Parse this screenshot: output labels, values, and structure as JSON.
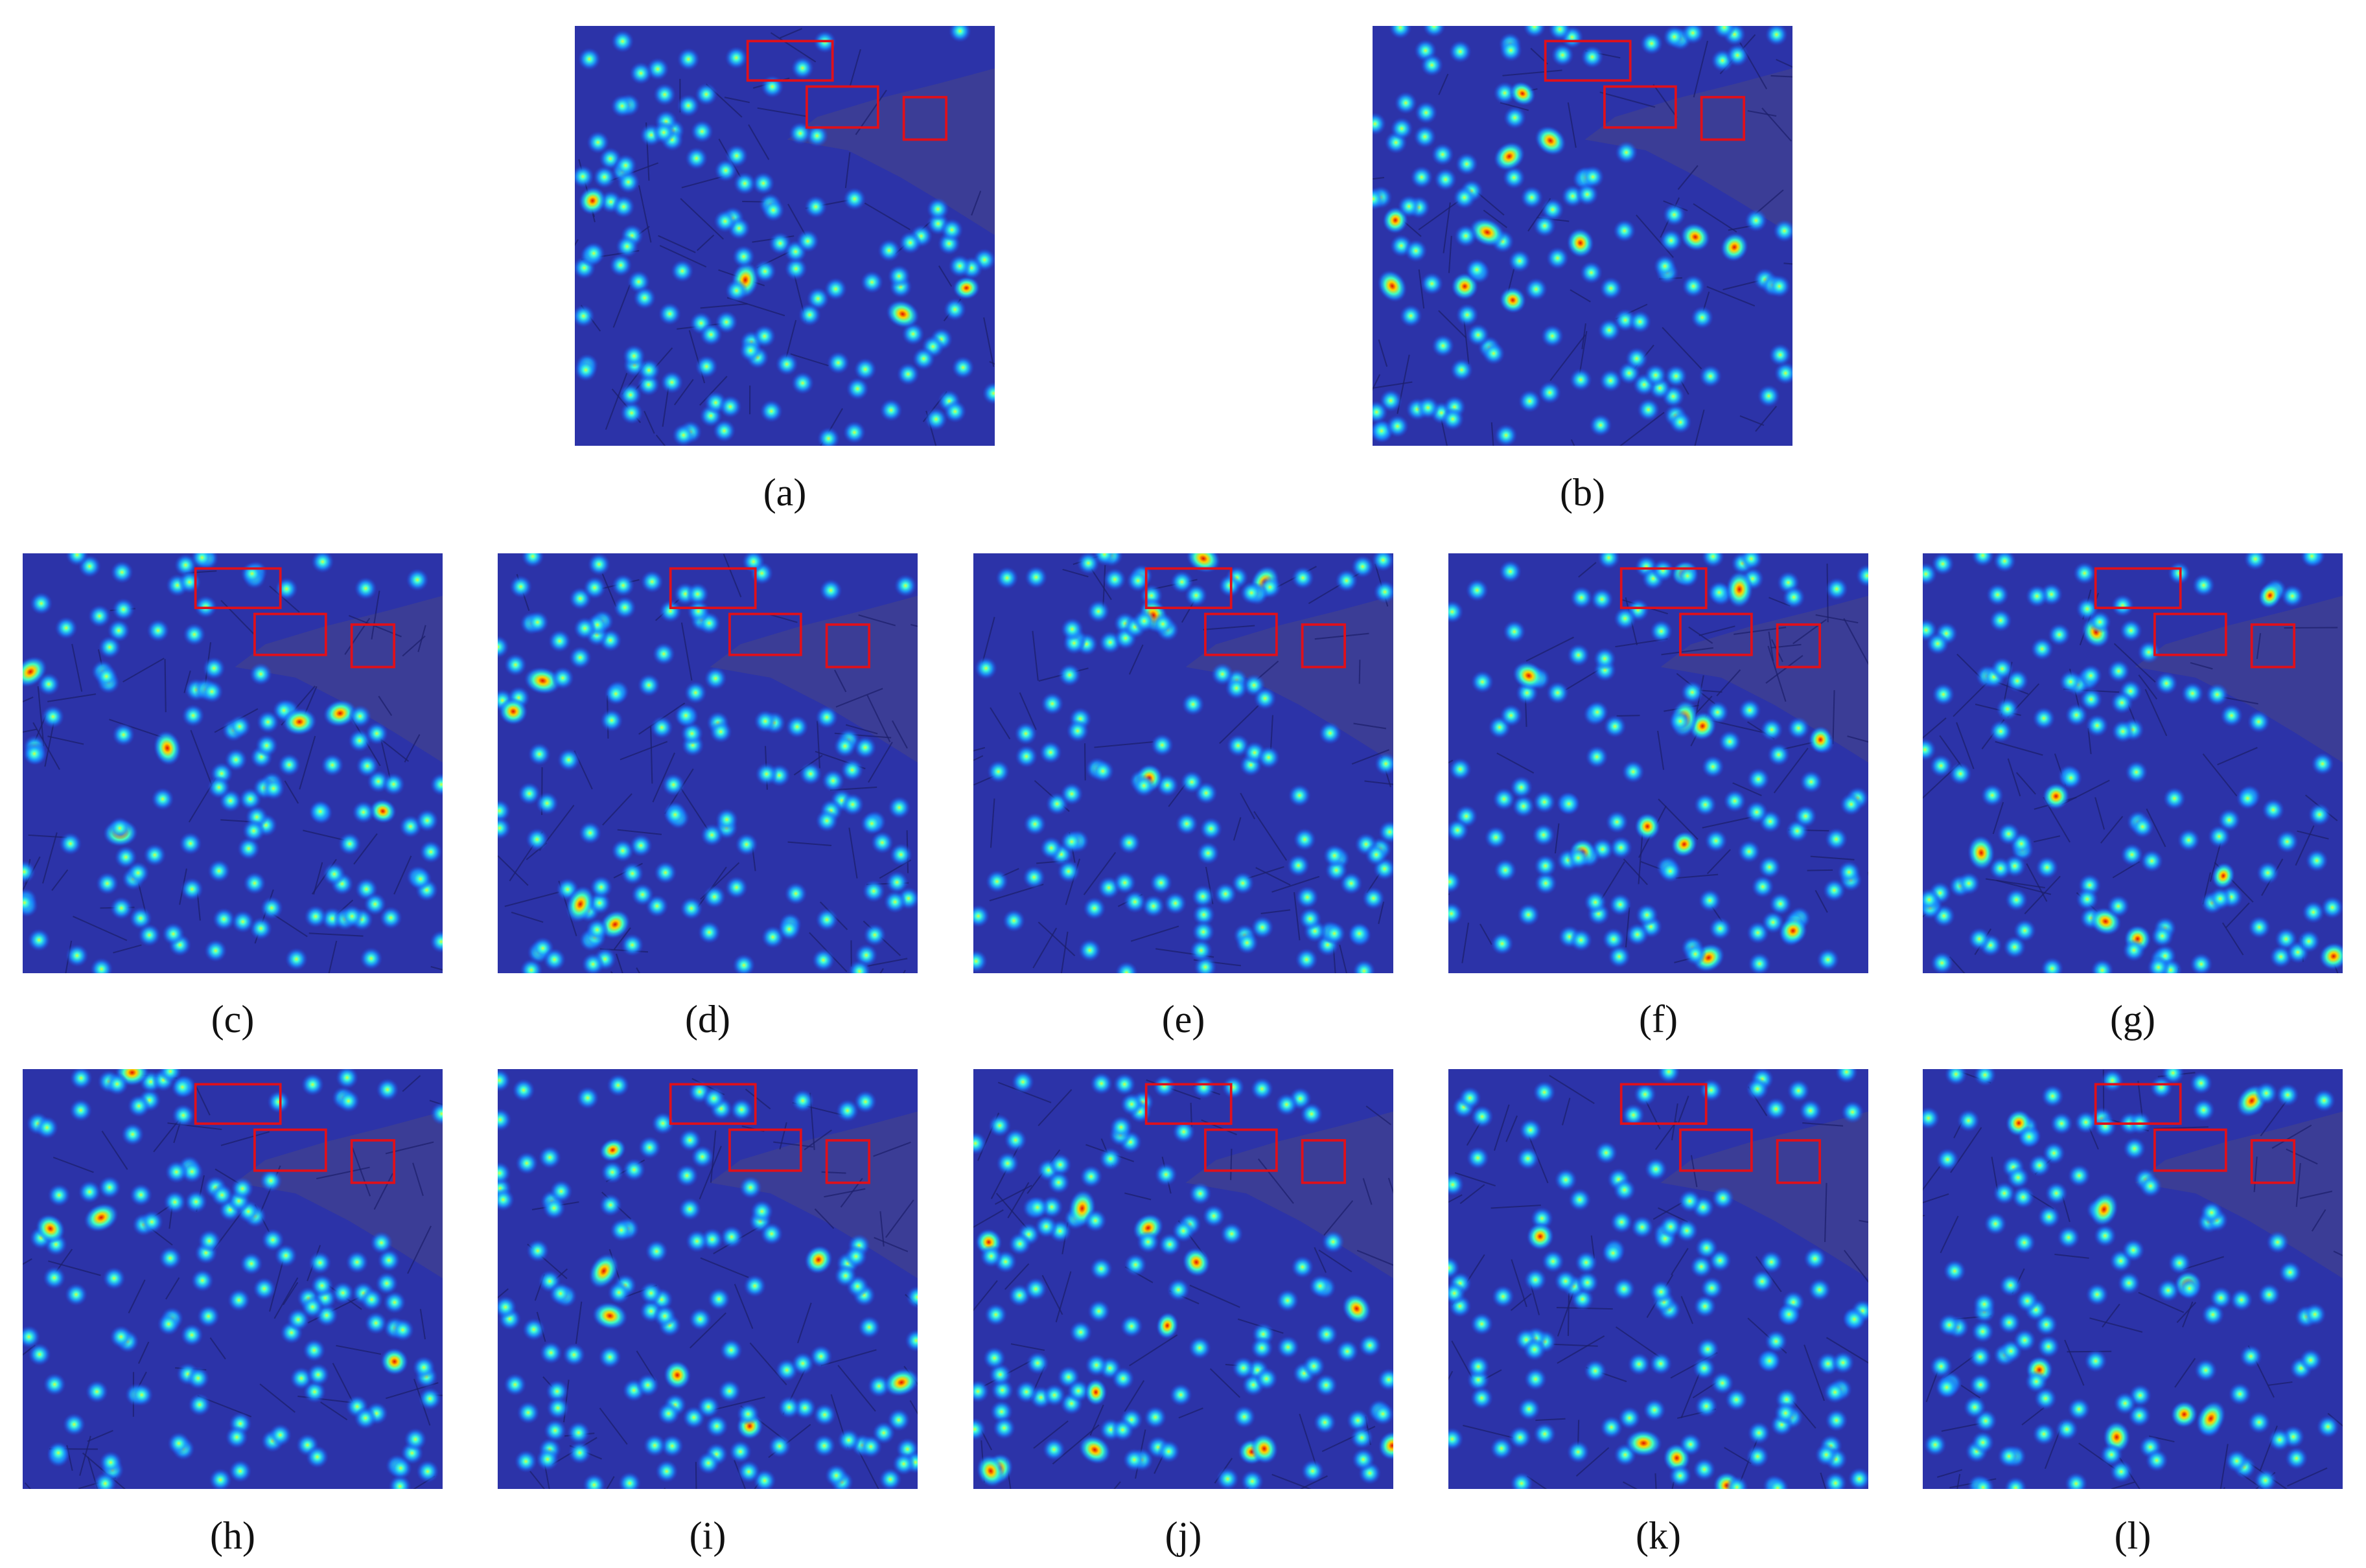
{
  "figure": {
    "panels": [
      {
        "label": "(a)"
      },
      {
        "label": "(b)"
      },
      {
        "label": "(c)"
      },
      {
        "label": "(d)"
      },
      {
        "label": "(e)"
      },
      {
        "label": "(f)"
      },
      {
        "label": "(g)"
      },
      {
        "label": "(h)"
      },
      {
        "label": "(i)"
      },
      {
        "label": "(j)"
      },
      {
        "label": "(k)"
      },
      {
        "label": "(l)"
      }
    ]
  }
}
